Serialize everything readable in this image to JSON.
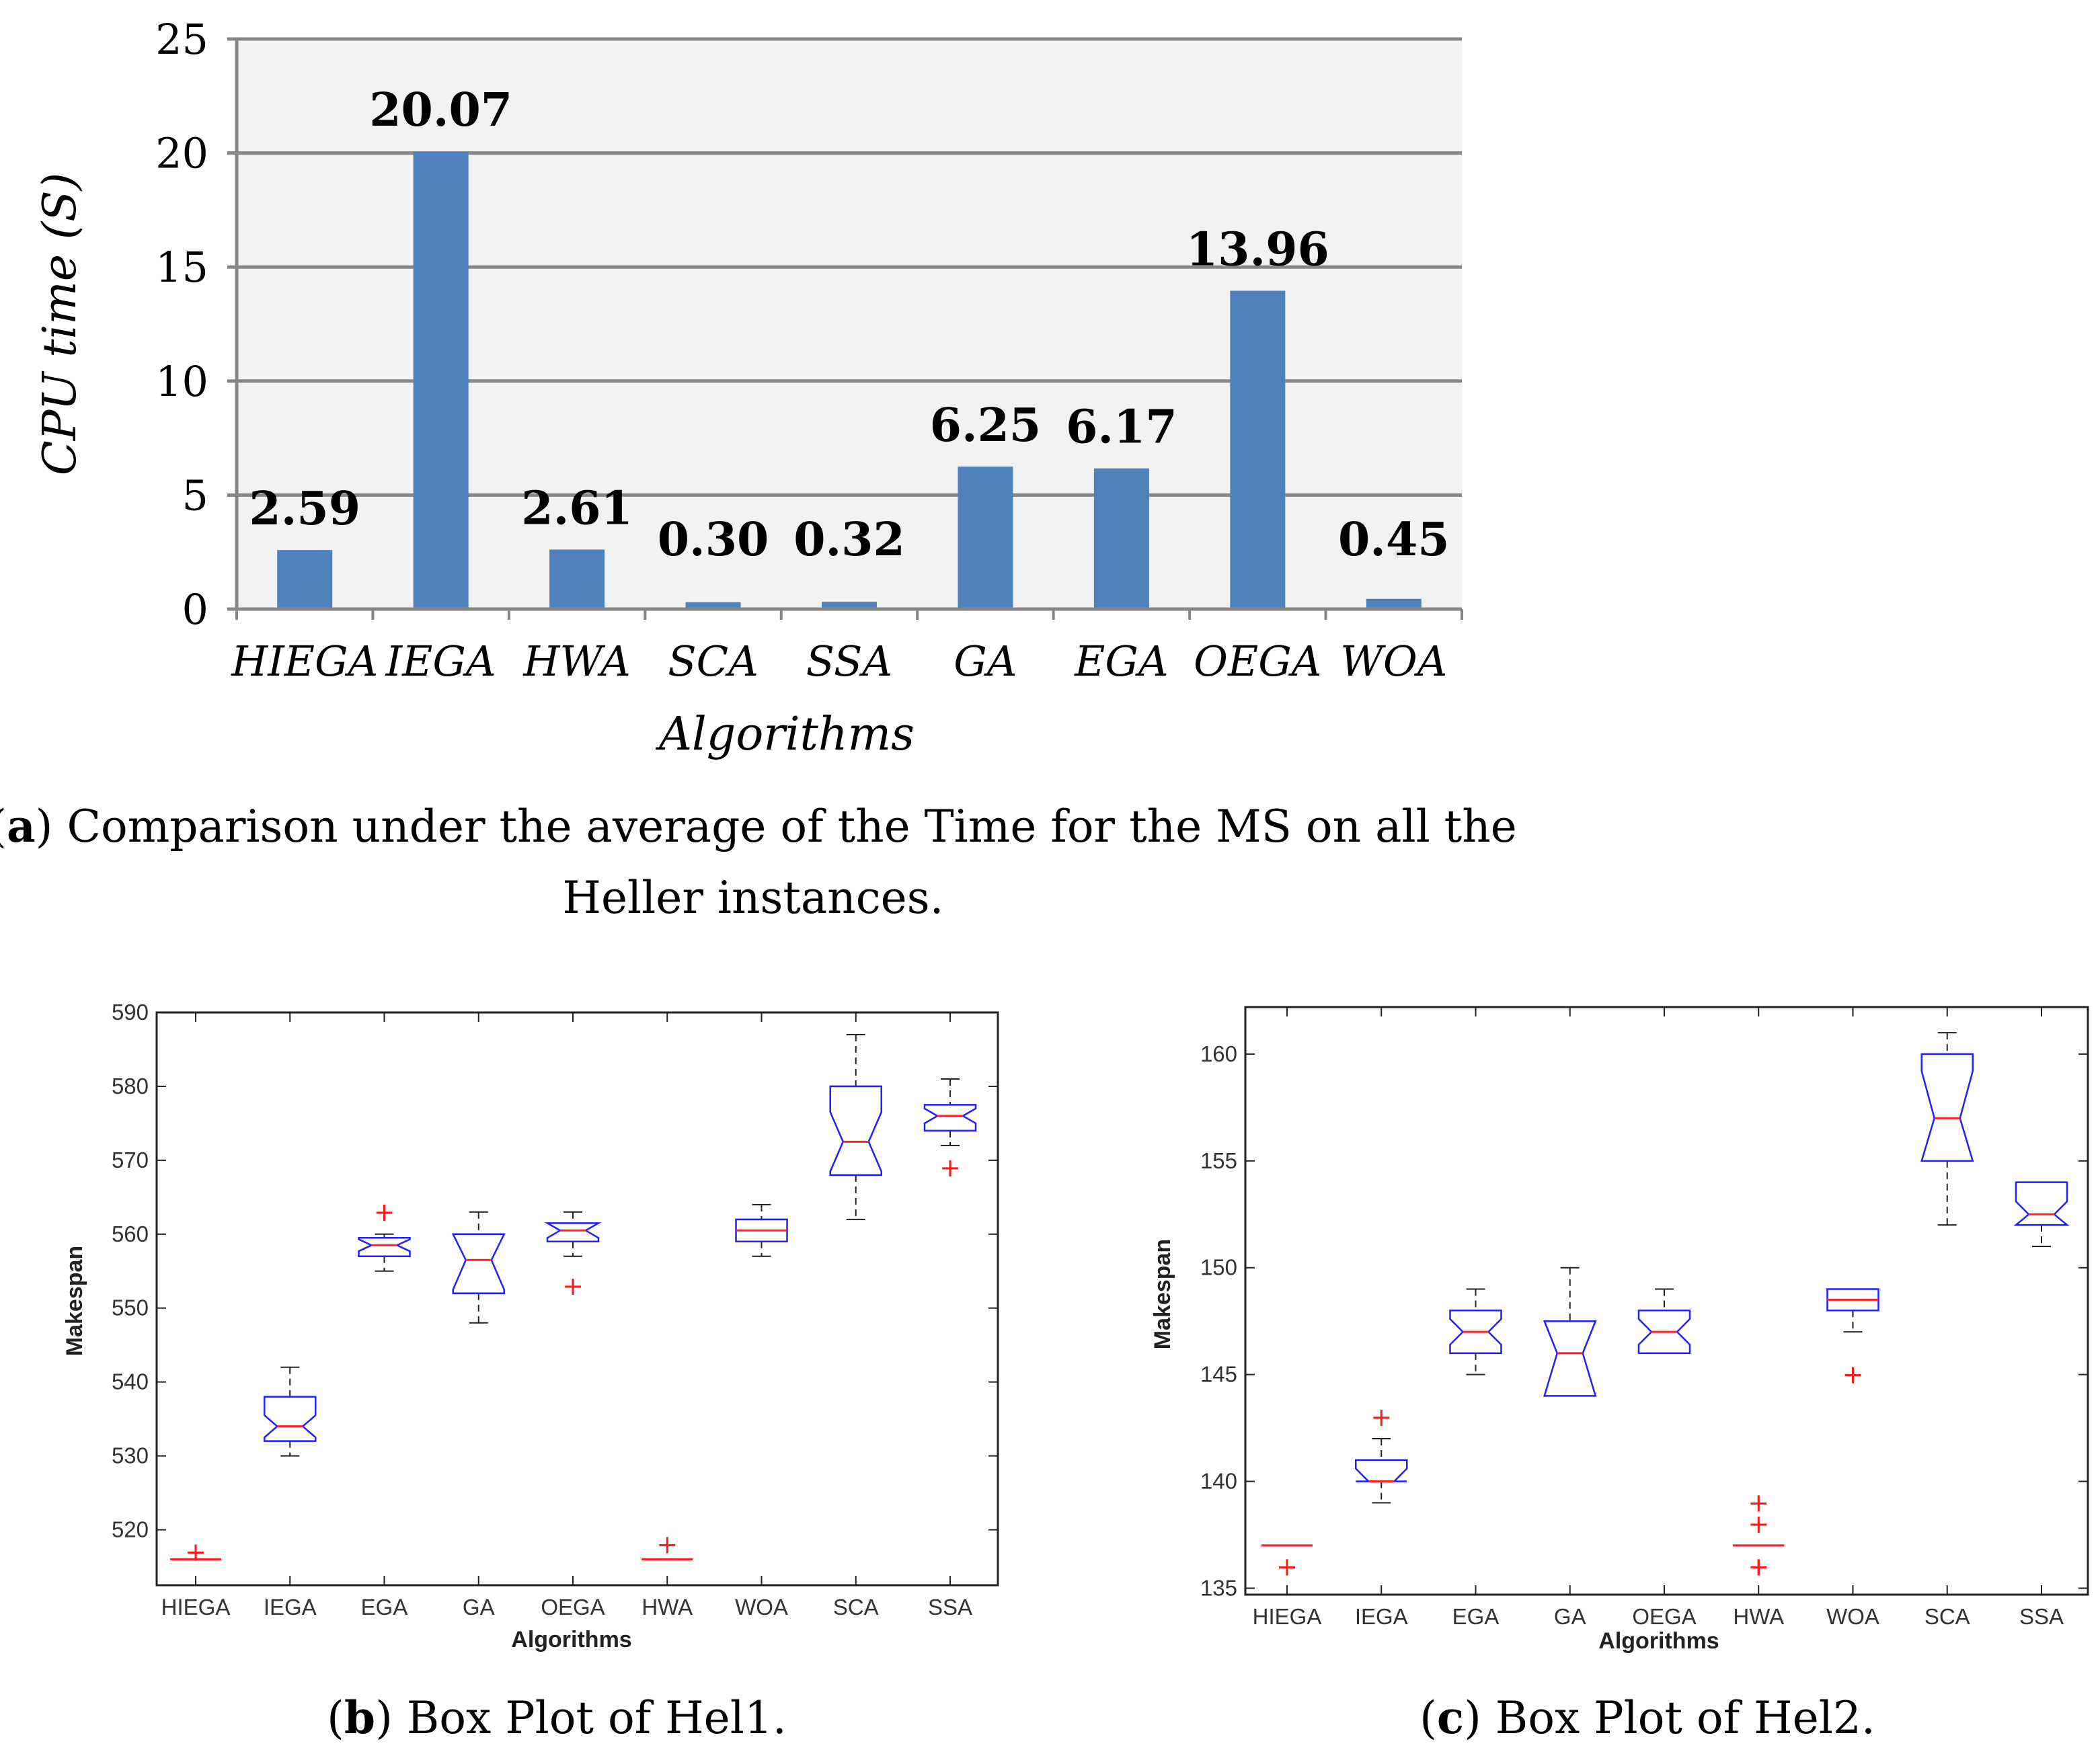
{
  "chart_data": [
    {
      "type": "bar",
      "id": "a",
      "categories": [
        "HIEGA",
        "IEGA",
        "HWA",
        "SCA",
        "SSA",
        "GA",
        "EGA",
        "OEGA",
        "WOA"
      ],
      "values": [
        2.59,
        20.07,
        2.61,
        0.3,
        0.32,
        6.25,
        6.17,
        13.96,
        0.45
      ],
      "value_labels": [
        "2.59",
        "20.07",
        "2.61",
        "0.30",
        "0.32",
        "6.25",
        "6.17",
        "13.96",
        "0.45"
      ],
      "yticks": [
        "0",
        "5",
        "10",
        "15",
        "20",
        "25"
      ],
      "ylim": [
        0,
        25
      ],
      "xlabel": "Algorithms",
      "ylabel": "CPU time (S)",
      "bar_color": "#4f81bd",
      "caption_prefix": "a",
      "caption_line1": ") Comparison under the average of the Time for the MS on all the",
      "caption_line2": "Heller instances."
    },
    {
      "type": "box",
      "id": "b",
      "categories": [
        "HIEGA",
        "IEGA",
        "EGA",
        "GA",
        "OEGA",
        "HWA",
        "WOA",
        "SCA",
        "SSA"
      ],
      "ylim": [
        512.5,
        590
      ],
      "yticks": [
        "520",
        "530",
        "540",
        "550",
        "560",
        "570",
        "580",
        "590"
      ],
      "ytick_values": [
        520,
        530,
        540,
        550,
        560,
        570,
        580,
        590
      ],
      "xlabel": "Algorithms",
      "ylabel": "Makespan",
      "boxes": [
        {
          "min": 516,
          "q1": 516,
          "median": 516,
          "q3": 516,
          "max": 516,
          "notch": 0,
          "outliers": [
            517
          ]
        },
        {
          "min": 530,
          "q1": 532,
          "median": 534,
          "q3": 538,
          "max": 542,
          "notch": 1.5,
          "outliers": []
        },
        {
          "min": 555,
          "q1": 557,
          "median": 558.5,
          "q3": 559.5,
          "max": 560,
          "notch": 0.8,
          "outliers": [
            563
          ]
        },
        {
          "min": 548,
          "q1": 552,
          "median": 556.5,
          "q3": 560,
          "max": 563,
          "notch": 4,
          "outliers": []
        },
        {
          "min": 557,
          "q1": 559,
          "median": 560.5,
          "q3": 561.5,
          "max": 563,
          "notch": 1,
          "outliers": [
            553
          ]
        },
        {
          "min": 516,
          "q1": 516,
          "median": 516,
          "q3": 516,
          "max": 516,
          "notch": 0,
          "outliers": [
            518
          ]
        },
        {
          "min": 557,
          "q1": 559,
          "median": 560.5,
          "q3": 562,
          "max": 564,
          "notch": 0,
          "outliers": []
        },
        {
          "min": 562,
          "q1": 568,
          "median": 572.5,
          "q3": 580,
          "max": 587,
          "notch": 4,
          "outliers": []
        },
        {
          "min": 572,
          "q1": 574,
          "median": 576,
          "q3": 577.5,
          "max": 581,
          "notch": 1,
          "outliers": [
            569
          ]
        }
      ],
      "caption_prefix": "b",
      "caption_text": ") Box Plot of Hel1."
    },
    {
      "type": "box",
      "id": "c",
      "categories": [
        "HIEGA",
        "IEGA",
        "EGA",
        "GA",
        "OEGA",
        "HWA",
        "WOA",
        "SCA",
        "SSA"
      ],
      "ylim": [
        134.7,
        162.2
      ],
      "yticks": [
        "135",
        "140",
        "145",
        "150",
        "155",
        "160"
      ],
      "ytick_values": [
        135,
        140,
        145,
        150,
        155,
        160
      ],
      "xlabel": "Algorithms",
      "ylabel": "Makespan",
      "boxes": [
        {
          "min": 137,
          "q1": 137,
          "median": 137,
          "q3": 137,
          "max": 137,
          "notch": 0,
          "outliers": [
            136,
            136
          ]
        },
        {
          "min": 139,
          "q1": 140,
          "median": 140,
          "q3": 141,
          "max": 142,
          "notch": 0.6,
          "outliers": [
            143
          ]
        },
        {
          "min": 145,
          "q1": 146,
          "median": 147,
          "q3": 148,
          "max": 149,
          "notch": 0.6,
          "outliers": []
        },
        {
          "min": 144,
          "q1": 144,
          "median": 146,
          "q3": 147.5,
          "max": 150,
          "notch": 2,
          "outliers": []
        },
        {
          "min": 146,
          "q1": 146,
          "median": 147,
          "q3": 148,
          "max": 149,
          "notch": 0.6,
          "outliers": []
        },
        {
          "min": 137,
          "q1": 137,
          "median": 137,
          "q3": 137,
          "max": 137,
          "notch": 0,
          "outliers": [
            139,
            138,
            136,
            136
          ]
        },
        {
          "min": 147,
          "q1": 148,
          "median": 148.5,
          "q3": 149,
          "max": 149,
          "notch": 0,
          "outliers": [
            145
          ]
        },
        {
          "min": 152,
          "q1": 155,
          "median": 157,
          "q3": 160,
          "max": 161,
          "notch": 2.2,
          "outliers": []
        },
        {
          "min": 151,
          "q1": 152,
          "median": 152.5,
          "q3": 154,
          "max": 154,
          "notch": 0.6,
          "outliers": []
        }
      ],
      "caption_prefix": "c",
      "caption_text": ") Box Plot of Hel2."
    }
  ]
}
